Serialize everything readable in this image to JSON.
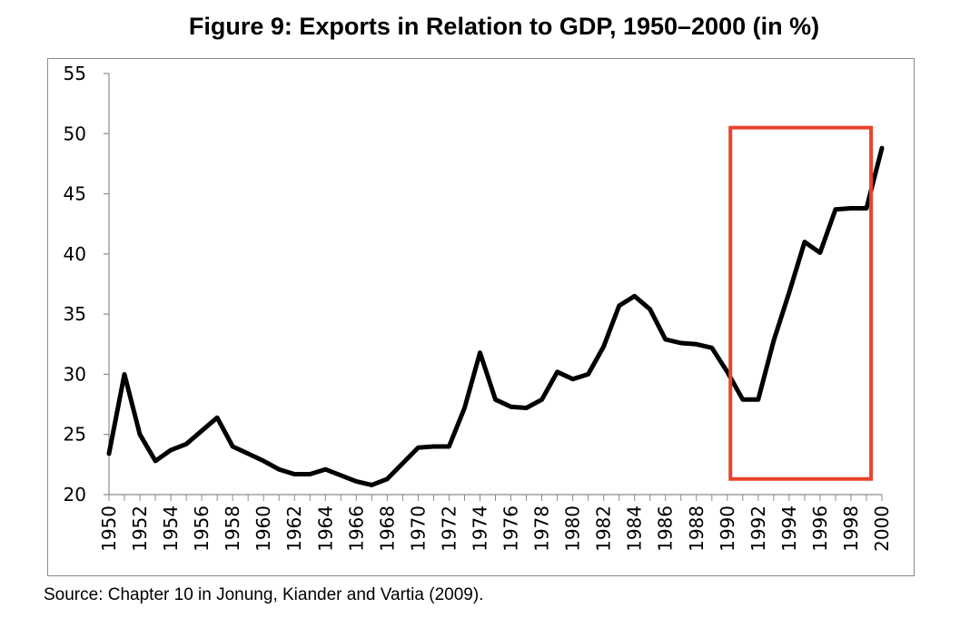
{
  "chart_data": {
    "type": "line",
    "title": "Figure 9: Exports in Relation to GDP, 1950–2000 (in %)",
    "xlabel": "",
    "ylabel": "",
    "xlim": [
      1950,
      2000
    ],
    "ylim": [
      20,
      55
    ],
    "y_ticks": [
      20,
      25,
      30,
      35,
      40,
      45,
      50,
      55
    ],
    "x_tick_labels": [
      "1950",
      "1952",
      "1954",
      "1956",
      "1958",
      "1960",
      "1962",
      "1964",
      "1966",
      "1968",
      "1970",
      "1972",
      "1974",
      "1976",
      "1978",
      "1980",
      "1982",
      "1984",
      "1986",
      "1988",
      "1990",
      "1992",
      "1994",
      "1996",
      "1998",
      "2000"
    ],
    "grid": false,
    "legend": "none",
    "line_color": "#000000",
    "series": [
      {
        "x": [
          1950,
          1951,
          1952,
          1953,
          1954,
          1955,
          1956,
          1957,
          1958,
          1959,
          1960,
          1961,
          1962,
          1963,
          1964,
          1965,
          1966,
          1967,
          1968,
          1969,
          1970,
          1971,
          1972,
          1973,
          1974,
          1975,
          1976,
          1977,
          1978,
          1979,
          1980,
          1981,
          1982,
          1983,
          1984,
          1985,
          1986,
          1987,
          1988,
          1989,
          1990,
          1991,
          1992,
          1993,
          1994,
          1995,
          1996,
          1997,
          1998,
          1999,
          2000
        ],
        "values": [
          23.4,
          30.0,
          25.0,
          22.8,
          23.7,
          24.2,
          25.3,
          26.4,
          24.0,
          23.4,
          22.8,
          22.1,
          21.7,
          21.7,
          22.1,
          21.6,
          21.1,
          20.8,
          21.3,
          22.6,
          23.9,
          24.0,
          24.0,
          27.2,
          31.8,
          27.9,
          27.3,
          27.2,
          27.9,
          30.2,
          29.6,
          30.0,
          32.3,
          35.7,
          36.5,
          35.4,
          32.9,
          32.6,
          32.5,
          32.2,
          30.2,
          27.9,
          27.9,
          32.8,
          36.8,
          41.0,
          40.1,
          43.7,
          43.8,
          43.8,
          48.8
        ]
      }
    ],
    "annotations": [
      {
        "type": "rectangle",
        "color": "#e8432e",
        "x_range": [
          1990.2,
          1999.3
        ],
        "y_range": [
          21.3,
          50.5
        ]
      }
    ]
  },
  "source": "Source: Chapter 10 in Jonung, Kiander and Vartia (2009)."
}
